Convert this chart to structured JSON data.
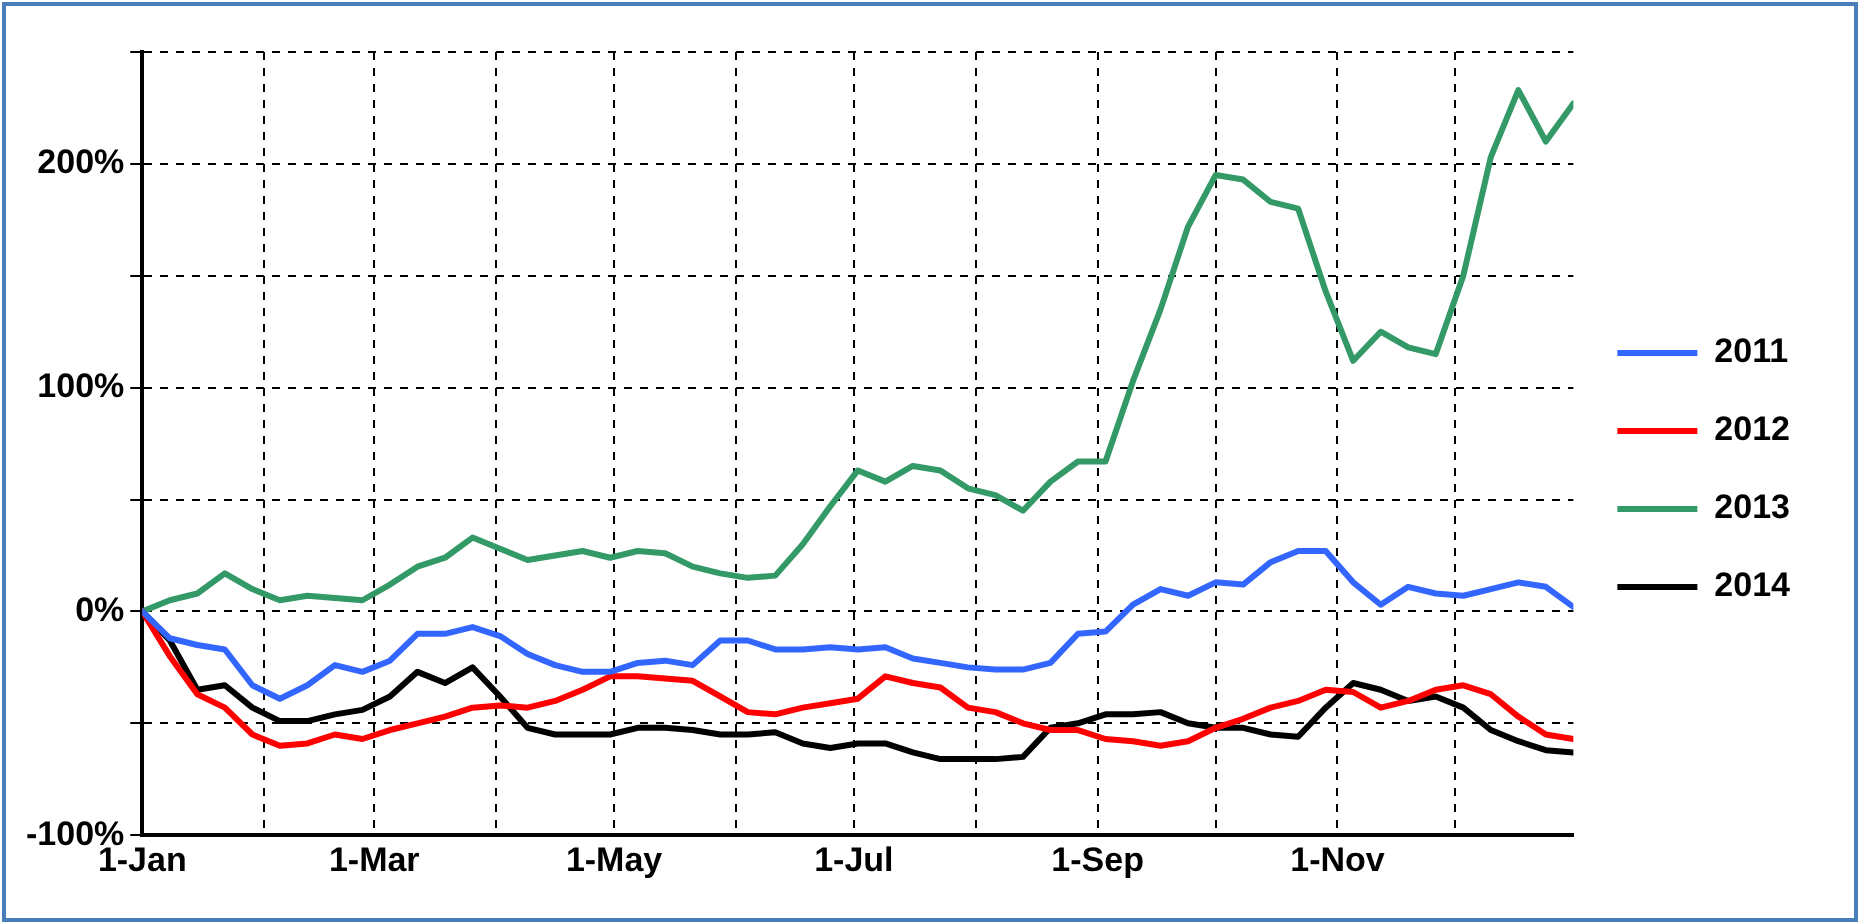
{
  "chart_data": {
    "type": "line",
    "x": [
      "--01-01",
      "--01-08",
      "--01-15",
      "--01-22",
      "--01-29",
      "--02-05",
      "--02-12",
      "--02-19",
      "--02-26",
      "--03-05",
      "--03-12",
      "--03-19",
      "--03-26",
      "--04-02",
      "--04-09",
      "--04-16",
      "--04-23",
      "--04-30",
      "--05-07",
      "--05-14",
      "--05-21",
      "--05-28",
      "--06-04",
      "--06-11",
      "--06-18",
      "--06-25",
      "--07-02",
      "--07-09",
      "--07-16",
      "--07-23",
      "--07-30",
      "--08-06",
      "--08-13",
      "--08-20",
      "--08-27",
      "--09-03",
      "--09-10",
      "--09-17",
      "--09-24",
      "--10-01",
      "--10-08",
      "--10-15",
      "--10-22",
      "--10-29",
      "--11-05",
      "--11-12",
      "--11-19",
      "--11-26",
      "--12-03",
      "--12-10",
      "--12-17",
      "--12-24",
      "--12-31"
    ],
    "series": [
      {
        "name": "2011",
        "color": "#3366ff",
        "values": [
          0,
          -12,
          -15,
          -17,
          -33,
          -39,
          -33,
          -24,
          -27,
          -22,
          -10,
          -10,
          -7,
          -11,
          -19,
          -24,
          -27,
          -27,
          -23,
          -22,
          -24,
          -13,
          -13,
          -17,
          -17,
          -16,
          -17,
          -16,
          -21,
          -23,
          -25,
          -26,
          -26,
          -23,
          -10,
          -9,
          3,
          10,
          7,
          13,
          12,
          22,
          27,
          27,
          13,
          3,
          11,
          8,
          7,
          10,
          13,
          11,
          2
        ]
      },
      {
        "name": "2012",
        "color": "#ff0000",
        "values": [
          0,
          -20,
          -37,
          -43,
          -55,
          -60,
          -59,
          -55,
          -57,
          -53,
          -50,
          -47,
          -43,
          -42,
          -43,
          -40,
          -35,
          -29,
          -29,
          -30,
          -31,
          -38,
          -45,
          -46,
          -43,
          -41,
          -39,
          -29,
          -32,
          -34,
          -43,
          -45,
          -50,
          -53,
          -53,
          -57,
          -58,
          -60,
          -58,
          -52,
          -48,
          -43,
          -40,
          -35,
          -36,
          -43,
          -40,
          -35,
          -33,
          -37,
          -47,
          -55,
          -57
        ]
      },
      {
        "name": "2013",
        "color": "#339966",
        "values": [
          0,
          5,
          8,
          17,
          10,
          5,
          7,
          6,
          5,
          12,
          20,
          24,
          33,
          28,
          23,
          25,
          27,
          24,
          27,
          26,
          20,
          17,
          15,
          16,
          30,
          47,
          63,
          58,
          65,
          63,
          55,
          52,
          45,
          58,
          67,
          67,
          103,
          135,
          172,
          195,
          193,
          183,
          180,
          143,
          112,
          125,
          118,
          115,
          150,
          203,
          233,
          210,
          227
        ]
      },
      {
        "name": "2014",
        "color": "#000000",
        "values": [
          0,
          -13,
          -35,
          -33,
          -43,
          -49,
          -49,
          -46,
          -44,
          -38,
          -27,
          -32,
          -25,
          -38,
          -52,
          -55,
          -55,
          -55,
          -52,
          -52,
          -53,
          -55,
          -55,
          -54,
          -59,
          -61,
          -59,
          -59,
          -63,
          -66,
          -66,
          -66,
          -65,
          -52,
          -50,
          -46,
          -46,
          -45,
          -50,
          -52,
          -52,
          -55,
          -56,
          -43,
          -32,
          -35,
          -40,
          -38,
          -43,
          -53,
          -58,
          -62,
          -63
        ]
      }
    ],
    "xlim": [
      "--01-01",
      "--12-31"
    ],
    "xticks": [
      {
        "value": "--01-01",
        "label": "1-Jan"
      },
      {
        "value": "--02-01",
        "label": null
      },
      {
        "value": "--03-01",
        "label": "1-Mar"
      },
      {
        "value": "--04-01",
        "label": null
      },
      {
        "value": "--05-01",
        "label": "1-May"
      },
      {
        "value": "--06-01",
        "label": null
      },
      {
        "value": "--07-01",
        "label": "1-Jul"
      },
      {
        "value": "--08-01",
        "label": null
      },
      {
        "value": "--09-01",
        "label": "1-Sep"
      },
      {
        "value": "--10-01",
        "label": null
      },
      {
        "value": "--11-01",
        "label": "1-Nov"
      },
      {
        "value": "--12-01",
        "label": null
      }
    ],
    "ylim": [
      -100,
      250
    ],
    "yticks": [
      {
        "value": -100,
        "label": "-100%"
      },
      {
        "value": -50,
        "label": null
      },
      {
        "value": 0,
        "label": "0%"
      },
      {
        "value": 50,
        "label": null
      },
      {
        "value": 100,
        "label": "100%"
      },
      {
        "value": 150,
        "label": null
      },
      {
        "value": 200,
        "label": "200%"
      },
      {
        "value": 250,
        "label": null
      }
    ],
    "grid": true,
    "legend": "right",
    "marker": "none",
    "line_style": "solid"
  }
}
